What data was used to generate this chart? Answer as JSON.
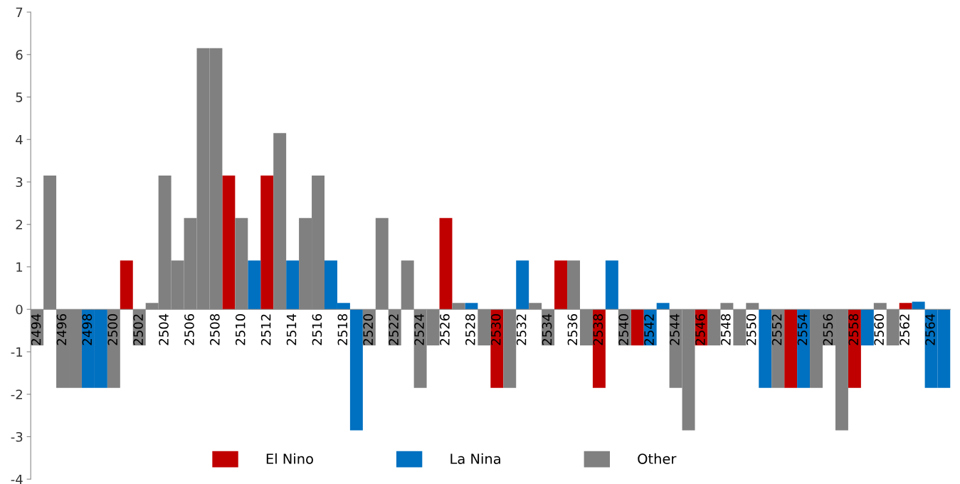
{
  "chart_data": {
    "type": "bar",
    "stacked": true,
    "legend": "bottom",
    "grid": false,
    "ylim": [
      -4,
      7
    ],
    "yticks": [
      -4,
      -3,
      -2,
      -1,
      0,
      1,
      2,
      3,
      4,
      5,
      6,
      7
    ],
    "categories": [
      "2494",
      null,
      "2496",
      null,
      "2498",
      null,
      "2500",
      null,
      "2502",
      null,
      "2504",
      null,
      "2506",
      null,
      "2508",
      null,
      "2510",
      null,
      "2512",
      null,
      "2514",
      null,
      "2516",
      null,
      "2518",
      null,
      "2520",
      null,
      "2522",
      null,
      "2524",
      null,
      "2526",
      null,
      "2528",
      null,
      "2530",
      null,
      "2532",
      null,
      "2534",
      null,
      "2536",
      null,
      "2538",
      null,
      "2540",
      null,
      "2542",
      null,
      "2544",
      null,
      "2546",
      null,
      "2548",
      null,
      "2550",
      null,
      "2552",
      null,
      "2554",
      null,
      "2556",
      null,
      "2558",
      null,
      "2560",
      null,
      "2562",
      null,
      "2564",
      null
    ],
    "series": [
      {
        "name": "El Nino",
        "color": "#c00000",
        "values": [
          null,
          null,
          null,
          null,
          null,
          null,
          null,
          1.15,
          null,
          null,
          null,
          null,
          null,
          null,
          null,
          3.15,
          null,
          null,
          3.15,
          null,
          null,
          null,
          null,
          null,
          null,
          null,
          null,
          null,
          null,
          null,
          null,
          null,
          2.15,
          null,
          null,
          null,
          -1.85,
          null,
          null,
          null,
          null,
          1.15,
          null,
          null,
          -1.85,
          null,
          null,
          -0.85,
          null,
          null,
          null,
          null,
          -0.85,
          null,
          null,
          null,
          null,
          null,
          null,
          -1.85,
          null,
          null,
          null,
          null,
          -1.85,
          null,
          null,
          null,
          0.15,
          null,
          null,
          null
        ]
      },
      {
        "name": "La Nina",
        "color": "#0070c0",
        "values": [
          null,
          null,
          null,
          null,
          -1.85,
          -1.85,
          null,
          null,
          null,
          null,
          null,
          null,
          null,
          null,
          null,
          null,
          null,
          1.15,
          null,
          null,
          1.15,
          null,
          null,
          1.15,
          0.15,
          -2.85,
          null,
          null,
          null,
          null,
          null,
          null,
          null,
          null,
          0.15,
          null,
          null,
          null,
          1.15,
          null,
          null,
          null,
          null,
          null,
          null,
          1.15,
          null,
          null,
          -0.85,
          0.15,
          null,
          null,
          null,
          null,
          null,
          null,
          null,
          -1.85,
          null,
          null,
          -1.85,
          null,
          null,
          null,
          null,
          -0.85,
          null,
          null,
          null,
          0.18,
          -1.85,
          -1.85
        ]
      },
      {
        "name": "Other",
        "color": "#808080",
        "values": [
          -0.85,
          3.15,
          -1.85,
          -1.85,
          null,
          null,
          -1.85,
          null,
          -0.85,
          0.15,
          3.15,
          1.15,
          2.15,
          6.15,
          6.15,
          null,
          2.15,
          null,
          null,
          4.15,
          null,
          2.15,
          3.15,
          null,
          null,
          null,
          -0.85,
          2.15,
          -0.85,
          1.15,
          -1.85,
          -0.85,
          null,
          0.15,
          null,
          -0.85,
          null,
          -1.85,
          null,
          0.15,
          -0.85,
          null,
          1.15,
          -0.85,
          null,
          null,
          -0.85,
          null,
          null,
          null,
          -1.85,
          -2.85,
          null,
          -0.85,
          0.15,
          -0.85,
          0.15,
          null,
          -1.85,
          null,
          null,
          -1.85,
          -0.85,
          -2.85,
          null,
          null,
          0.15,
          -0.85,
          null,
          null,
          null,
          null
        ]
      }
    ]
  }
}
